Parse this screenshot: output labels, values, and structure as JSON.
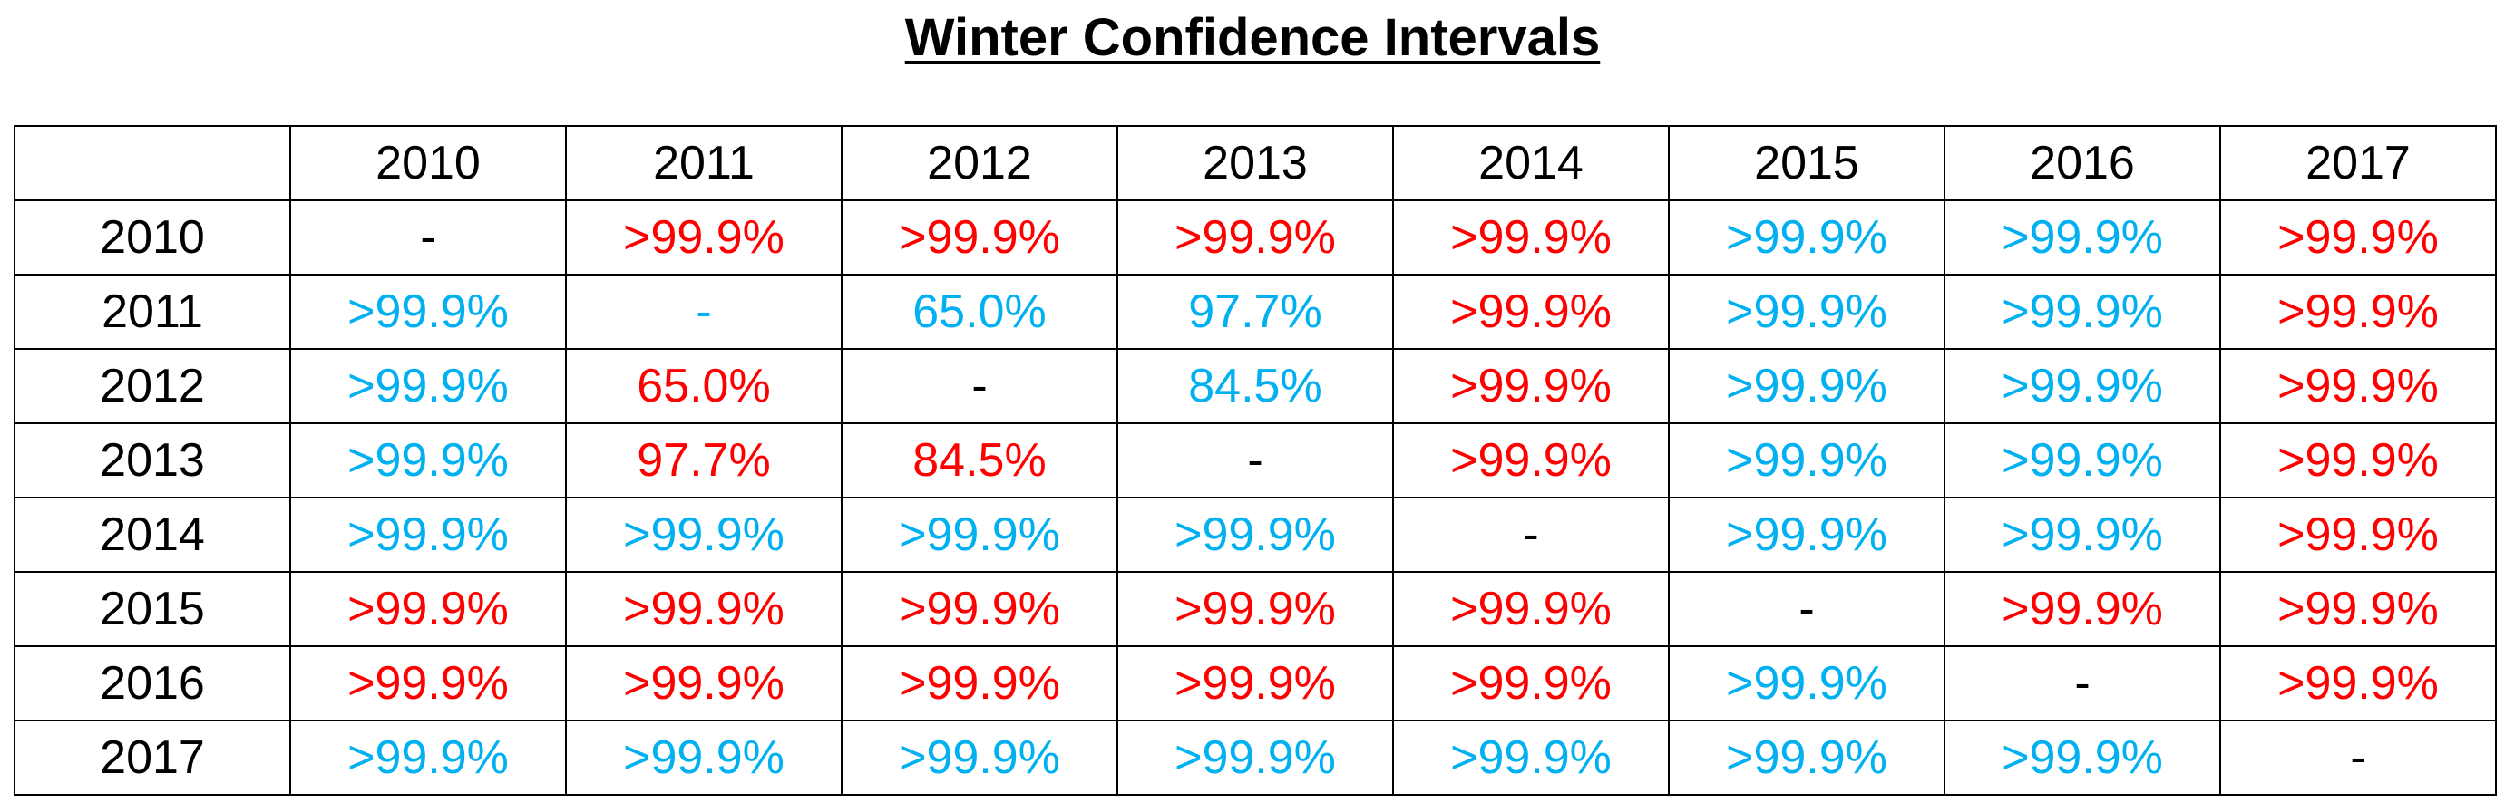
{
  "title": "Winter Confidence Intervals",
  "columns": [
    "2010",
    "2011",
    "2012",
    "2013",
    "2014",
    "2015",
    "2016",
    "2017"
  ],
  "colors": {
    "red": "#ff0000",
    "blue": "#00b0f0",
    "black": "#000000"
  },
  "rows": [
    {
      "label": "2010",
      "cells": [
        {
          "text": "-",
          "color": "black"
        },
        {
          "text": ">99.9%",
          "color": "red"
        },
        {
          "text": ">99.9%",
          "color": "red"
        },
        {
          "text": ">99.9%",
          "color": "red"
        },
        {
          "text": ">99.9%",
          "color": "red"
        },
        {
          "text": ">99.9%",
          "color": "blue"
        },
        {
          "text": ">99.9%",
          "color": "blue"
        },
        {
          "text": ">99.9%",
          "color": "red"
        }
      ]
    },
    {
      "label": "2011",
      "cells": [
        {
          "text": ">99.9%",
          "color": "blue"
        },
        {
          "text": "-",
          "color": "blue"
        },
        {
          "text": "65.0%",
          "color": "blue"
        },
        {
          "text": "97.7%",
          "color": "blue"
        },
        {
          "text": ">99.9%",
          "color": "red"
        },
        {
          "text": ">99.9%",
          "color": "blue"
        },
        {
          "text": ">99.9%",
          "color": "blue"
        },
        {
          "text": ">99.9%",
          "color": "red"
        }
      ]
    },
    {
      "label": "2012",
      "cells": [
        {
          "text": ">99.9%",
          "color": "blue"
        },
        {
          "text": "65.0%",
          "color": "red"
        },
        {
          "text": "-",
          "color": "black"
        },
        {
          "text": "84.5%",
          "color": "blue"
        },
        {
          "text": ">99.9%",
          "color": "red"
        },
        {
          "text": ">99.9%",
          "color": "blue"
        },
        {
          "text": ">99.9%",
          "color": "blue"
        },
        {
          "text": ">99.9%",
          "color": "red"
        }
      ]
    },
    {
      "label": "2013",
      "cells": [
        {
          "text": ">99.9%",
          "color": "blue"
        },
        {
          "text": "97.7%",
          "color": "red"
        },
        {
          "text": "84.5%",
          "color": "red"
        },
        {
          "text": "-",
          "color": "black"
        },
        {
          "text": ">99.9%",
          "color": "red"
        },
        {
          "text": ">99.9%",
          "color": "blue"
        },
        {
          "text": ">99.9%",
          "color": "blue"
        },
        {
          "text": ">99.9%",
          "color": "red"
        }
      ]
    },
    {
      "label": "2014",
      "cells": [
        {
          "text": ">99.9%",
          "color": "blue"
        },
        {
          "text": ">99.9%",
          "color": "blue"
        },
        {
          "text": ">99.9%",
          "color": "blue"
        },
        {
          "text": ">99.9%",
          "color": "blue"
        },
        {
          "text": "-",
          "color": "black"
        },
        {
          "text": ">99.9%",
          "color": "blue"
        },
        {
          "text": ">99.9%",
          "color": "blue"
        },
        {
          "text": ">99.9%",
          "color": "red"
        }
      ]
    },
    {
      "label": "2015",
      "cells": [
        {
          "text": ">99.9%",
          "color": "red"
        },
        {
          "text": ">99.9%",
          "color": "red"
        },
        {
          "text": ">99.9%",
          "color": "red"
        },
        {
          "text": ">99.9%",
          "color": "red"
        },
        {
          "text": ">99.9%",
          "color": "red"
        },
        {
          "text": "-",
          "color": "black"
        },
        {
          "text": ">99.9%",
          "color": "red"
        },
        {
          "text": ">99.9%",
          "color": "red"
        }
      ]
    },
    {
      "label": "2016",
      "cells": [
        {
          "text": ">99.9%",
          "color": "red"
        },
        {
          "text": ">99.9%",
          "color": "red"
        },
        {
          "text": ">99.9%",
          "color": "red"
        },
        {
          "text": ">99.9%",
          "color": "red"
        },
        {
          "text": ">99.9%",
          "color": "red"
        },
        {
          "text": ">99.9%",
          "color": "blue"
        },
        {
          "text": "-",
          "color": "black"
        },
        {
          "text": ">99.9%",
          "color": "red"
        }
      ]
    },
    {
      "label": "2017",
      "cells": [
        {
          "text": ">99.9%",
          "color": "blue"
        },
        {
          "text": ">99.9%",
          "color": "blue"
        },
        {
          "text": ">99.9%",
          "color": "blue"
        },
        {
          "text": ">99.9%",
          "color": "blue"
        },
        {
          "text": ">99.9%",
          "color": "blue"
        },
        {
          "text": ">99.9%",
          "color": "blue"
        },
        {
          "text": ">99.9%",
          "color": "blue"
        },
        {
          "text": "-",
          "color": "black"
        }
      ]
    }
  ]
}
